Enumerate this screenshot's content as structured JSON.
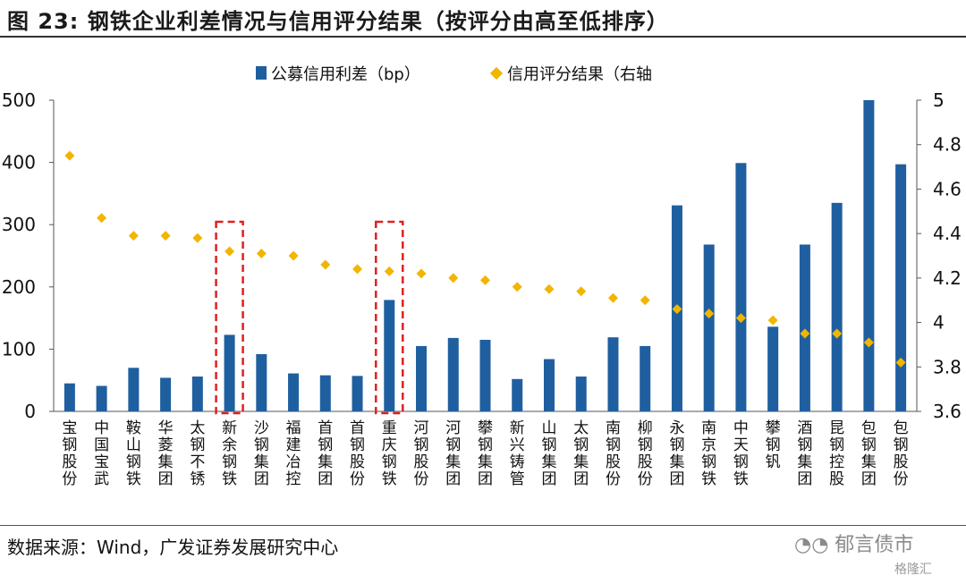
{
  "title": "图 23:  钢铁企业利差情况与信用评分结果（按评分由高至低排序）",
  "source": "数据来源：Wind，广发证券发展研究中心",
  "watermark": "郁言债市",
  "watermark_sub": "格隆汇",
  "colors": {
    "bar": "#1f5fa0",
    "marker": "#f2b500",
    "highlight": "#e02020"
  },
  "chart_data": {
    "type": "bar",
    "categories": [
      "宝钢股份",
      "中国宝武",
      "鞍山钢铁",
      "华菱集团",
      "太钢不锈",
      "新余钢铁",
      "沙钢集团",
      "福建冶控",
      "首钢集团",
      "首钢股份",
      "重庆钢铁",
      "河钢股份",
      "河钢集团",
      "攀钢集团",
      "新兴铸管",
      "山钢集团",
      "太钢集团",
      "南钢股份",
      "柳钢股份",
      "永钢集团",
      "南京钢铁",
      "中天钢铁",
      "攀钢钒",
      "酒钢集团",
      "昆钢控股",
      "包钢集团",
      "包钢股份"
    ],
    "series": [
      {
        "name": "公募信用利差（bp）",
        "type": "bar",
        "axis": "left",
        "values": [
          45,
          41,
          70,
          54,
          56,
          123,
          92,
          61,
          58,
          57,
          179,
          105,
          118,
          115,
          52,
          84,
          56,
          119,
          105,
          331,
          268,
          399,
          136,
          268,
          335,
          500,
          397
        ]
      },
      {
        "name": "信用评分结果（右轴",
        "type": "scatter",
        "axis": "right",
        "values": [
          4.75,
          4.47,
          4.39,
          4.39,
          4.38,
          4.32,
          4.31,
          4.3,
          4.26,
          4.24,
          4.23,
          4.22,
          4.2,
          4.19,
          4.16,
          4.15,
          4.14,
          4.11,
          4.1,
          4.06,
          4.04,
          4.02,
          4.01,
          3.95,
          3.95,
          3.91,
          3.82
        ]
      }
    ],
    "y_left": {
      "range": [
        0,
        500
      ],
      "ticks": [
        "0",
        "100",
        "200",
        "300",
        "400",
        "500"
      ]
    },
    "y_right": {
      "range": [
        3.6,
        5.0
      ],
      "ticks": [
        "3.6",
        "3.8",
        "4",
        "4.2",
        "4.4",
        "4.6",
        "4.8",
        "5"
      ]
    },
    "highlighted_categories": [
      "新余钢铁",
      "重庆钢铁"
    ],
    "legend_position": "top-center",
    "grid": false
  }
}
